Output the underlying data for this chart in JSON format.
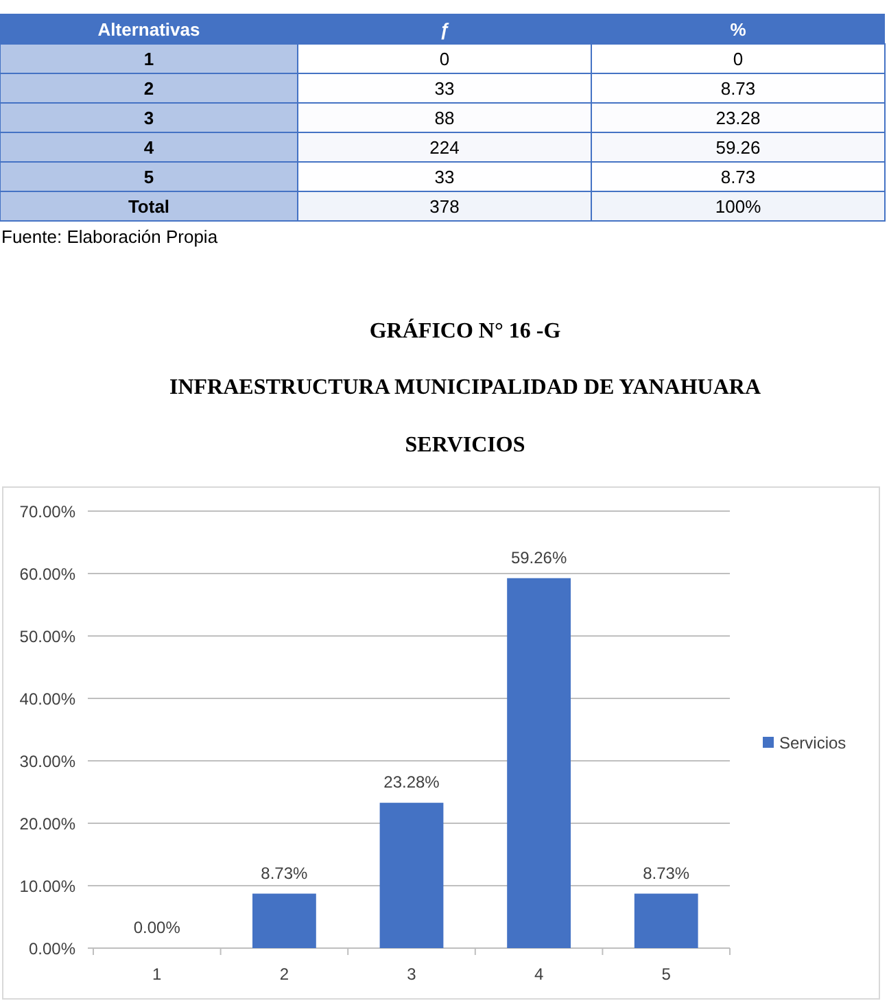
{
  "chart_data": [
    {
      "type": "heatmap",
      "ylabel": "Alternativas",
      "categories": [
        "ƒ",
        "%"
      ],
      "y_categories": [
        "1",
        "2",
        "3",
        "4",
        "5",
        "Total"
      ],
      "cells": [
        [
          0,
          0
        ],
        [
          33,
          8.73
        ],
        [
          88,
          23.28
        ],
        [
          224,
          59.26
        ],
        [
          33,
          8.73
        ],
        [
          378,
          100
        ]
      ],
      "cell_labels": [
        [
          "0",
          "0"
        ],
        [
          "33",
          "8.73"
        ],
        [
          "88",
          "23.28"
        ],
        [
          "224",
          "59.26"
        ],
        [
          "33",
          "8.73"
        ],
        [
          "378",
          "100%"
        ]
      ],
      "annotations": [
        "Fuente: Elaboración Propia"
      ]
    },
    {
      "type": "bar",
      "title": "GRÁFICO N° 16 -G",
      "subtitle": "INFRAESTRUCTURA MUNICIPALIDAD DE YANAHUARA",
      "annotations": [
        "SERVICIOS"
      ],
      "categories": [
        "1",
        "2",
        "3",
        "4",
        "5"
      ],
      "series": [
        {
          "name": "Servicios",
          "color": "#4472c4",
          "values": [
            0,
            8.73,
            23.28,
            59.26,
            8.73
          ],
          "value_labels": [
            "0.00%",
            "8.73%",
            "23.28%",
            "59.26%",
            "8.73%"
          ]
        }
      ],
      "ylim": [
        0,
        70
      ],
      "yticks": [
        {
          "value": 0,
          "label": "0.00%"
        },
        {
          "value": 10,
          "label": "10.00%"
        },
        {
          "value": 20,
          "label": "20.00%"
        },
        {
          "value": 30,
          "label": "30.00%"
        },
        {
          "value": 40,
          "label": "40.00%"
        },
        {
          "value": 50,
          "label": "50.00%"
        },
        {
          "value": 60,
          "label": "60.00%"
        },
        {
          "value": 70,
          "label": "70.00%"
        }
      ],
      "grid": "y",
      "legend": "right"
    }
  ]
}
